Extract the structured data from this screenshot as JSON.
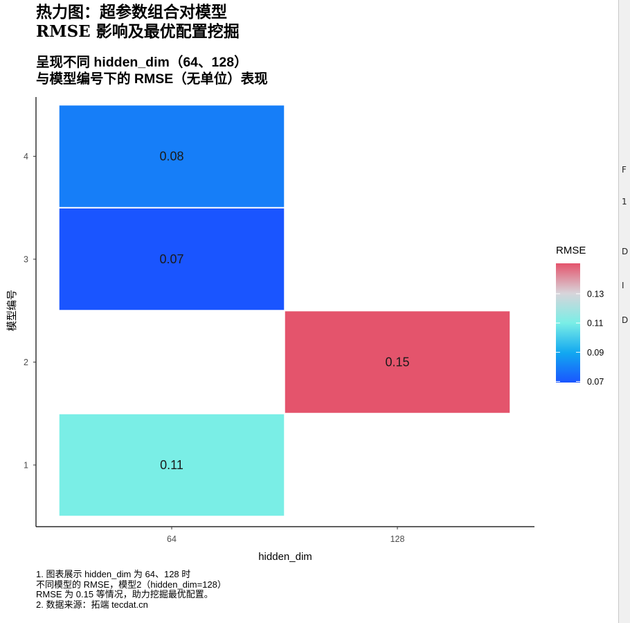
{
  "chart_data": {
    "type": "heatmap",
    "title": "热力图：超参数组合对模型\nRMSE 影响及最优配置挖掘",
    "subtitle": "呈现不同 hidden_dim（64、128）\n与模型编号下的 RMSE（无单位）表现",
    "caption": "1. 图表展示 hidden_dim 为 64、128 时\n不同模型的 RMSE，模型2（hidden_dim=128）\nRMSE 为 0.15 等情况，助力挖掘最优配置。\n2. 数据来源：拓端 tecdat.cn",
    "xlabel": "hidden_dim",
    "ylabel": "模型编号",
    "x_categories": [
      "64",
      "128"
    ],
    "y_categories": [
      "1",
      "2",
      "3",
      "4"
    ],
    "cells": [
      {
        "x": "64",
        "y": "1",
        "value": 0.11,
        "label": "0.11"
      },
      {
        "x": "128",
        "y": "2",
        "value": 0.15,
        "label": "0.15"
      },
      {
        "x": "64",
        "y": "3",
        "value": 0.07,
        "label": "0.07"
      },
      {
        "x": "64",
        "y": "4",
        "value": 0.08,
        "label": "0.08"
      }
    ],
    "legend": {
      "title": "RMSE",
      "placement": "right",
      "breaks": [
        "0.07",
        "0.09",
        "0.11",
        "0.13"
      ],
      "break_values": [
        0.07,
        0.09,
        0.11,
        0.13
      ],
      "range": [
        0.07,
        0.15
      ],
      "colors": [
        "#1a55ff",
        "#12a8f0",
        "#7aeee6",
        "#d8d4da",
        "#e4546c"
      ]
    },
    "grid": false
  },
  "window_edge": {
    "glyphs": [
      "F",
      "1",
      "D",
      "I",
      "D"
    ]
  }
}
